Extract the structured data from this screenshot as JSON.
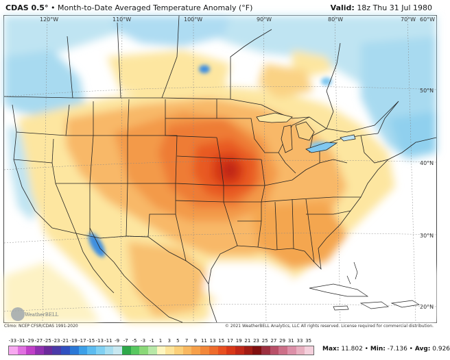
{
  "header": {
    "model": "CDAS 0.5°",
    "separator": "•",
    "product": "Month-to-Date Averaged Temperature Anomaly (°F)",
    "valid_label": "Valid:",
    "valid_time": "18z Thu 31 Jul 1980"
  },
  "map": {
    "longitude_labels": [
      "120°W",
      "110°W",
      "100°W",
      "90°W",
      "80°W",
      "70°W",
      "60°W"
    ],
    "latitude_labels": [
      "50°N",
      "40°N",
      "30°N",
      "20°N"
    ]
  },
  "credits": {
    "source": "Climo: NCEP CFSR/CDAS 1991-2020",
    "copyright": "© 2021 WeatherBELL Analytics, LLC All rights reserved. License required for commercial distribution.",
    "logo_text": "WeatherBELL"
  },
  "colorbar": {
    "labels": [
      "-33",
      "-31",
      "-29",
      "-27",
      "-25",
      "-23",
      "-21",
      "-19",
      "-17",
      "-15",
      "-13",
      "-11",
      "-9",
      "-7",
      "-5",
      "-3",
      "-1",
      "1",
      "3",
      "5",
      "7",
      "9",
      "11",
      "13",
      "15",
      "17",
      "19",
      "21",
      "23",
      "25",
      "27",
      "29",
      "31",
      "33",
      "35"
    ],
    "colors": [
      "#f7a8f0",
      "#e070e0",
      "#c040c8",
      "#9030b0",
      "#6a2a9a",
      "#4a3aa8",
      "#3050c0",
      "#2a78d6",
      "#3ca0e8",
      "#5cbcf0",
      "#80d0f2",
      "#a8def0",
      "#c8e8f0",
      "#2ea84a",
      "#58c860",
      "#8ad878",
      "#b8e8a8",
      "#fdf6c0",
      "#fde49a",
      "#fbd07a",
      "#f8b860",
      "#f6a04a",
      "#f2883a",
      "#ee6c2c",
      "#e85020",
      "#d83818",
      "#c02818",
      "#a01c14",
      "#801010",
      "#9c3040",
      "#b85068",
      "#cc7088",
      "#dc90a8",
      "#e8b0c0",
      "#f4d0dc"
    ]
  },
  "stats": {
    "max_label": "Max:",
    "max_value": "11.802",
    "min_label": "Min:",
    "min_value": "-7.136",
    "avg_label": "Avg:",
    "avg_value": "0.926"
  }
}
